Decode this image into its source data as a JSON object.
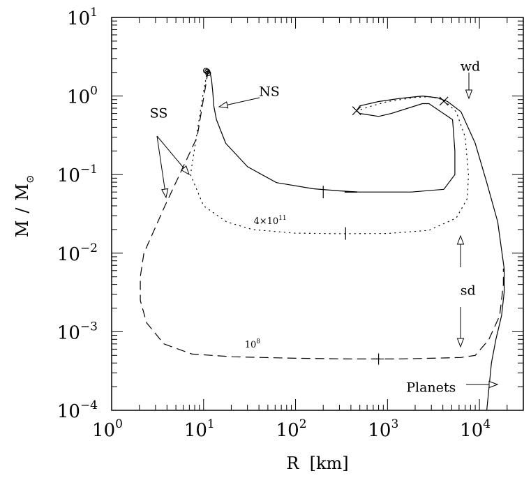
{
  "chart_data": {
    "type": "line",
    "x_scale": "log",
    "y_scale": "log",
    "xlim": [
      1,
      30000
    ],
    "ylim": [
      0.0001,
      10
    ],
    "xlabel": "R  [km]",
    "ylabel_main": "M",
    "ylabel_slash": "/",
    "ylabel_symbol": "M",
    "ylabel_sub": "⊙",
    "x_ticks": [
      {
        "base": "10",
        "exp": "0",
        "value": 1
      },
      {
        "base": "10",
        "exp": "1",
        "value": 10
      },
      {
        "base": "10",
        "exp": "2",
        "value": 100
      },
      {
        "base": "10",
        "exp": "3",
        "value": 1000
      },
      {
        "base": "10",
        "exp": "4",
        "value": 10000
      }
    ],
    "y_ticks": [
      {
        "base": "10",
        "exp": "−4",
        "value": 0.0001
      },
      {
        "base": "10",
        "exp": "−3",
        "value": 0.001
      },
      {
        "base": "10",
        "exp": "−2",
        "value": 0.01
      },
      {
        "base": "10",
        "exp": "−1",
        "value": 0.1
      },
      {
        "base": "10",
        "exp": "0",
        "value": 1
      },
      {
        "base": "10",
        "exp": "1",
        "value": 10
      }
    ],
    "grid": false,
    "series": [
      {
        "style": "solid",
        "x": [
          11.2,
          11.4,
          11.8,
          12.2,
          12.6,
          12.9,
          13.8,
          17.4,
          30,
          62,
          156,
          309,
          490,
          1000,
          1820,
          4100,
          5400,
          5400,
          5100,
          2820,
          2400,
          1100,
          800,
          500,
          462,
          500,
          800,
          1350,
          2400,
          3500,
          4500,
          6300,
          9000,
          12000,
          15800,
          18600,
          18600,
          17400,
          15100,
          13500,
          12000
        ],
        "y": [
          2.1,
          2.0,
          1.95,
          1.6,
          1.1,
          0.75,
          0.5,
          0.25,
          0.126,
          0.079,
          0.066,
          0.062,
          0.06,
          0.06,
          0.06,
          0.065,
          0.1,
          0.2,
          0.5,
          0.8,
          0.8,
          0.6,
          0.55,
          0.6,
          0.65,
          0.75,
          0.85,
          0.93,
          1.0,
          0.95,
          0.85,
          0.63,
          0.25,
          0.079,
          0.025,
          0.0063,
          0.0032,
          0.0016,
          0.0008,
          0.0004,
          0.0001
        ]
      },
      {
        "style": "dotted",
        "x": [
          11,
          9.8,
          7.2,
          10,
          17.8,
          34,
          98,
          302,
          1000,
          2820,
          5600,
          7400,
          7600,
          7000,
          5600,
          4100,
          3000,
          2000,
          1000,
          630,
          470
        ],
        "y": [
          2.1,
          1.0,
          0.1,
          0.04,
          0.025,
          0.02,
          0.018,
          0.0177,
          0.0178,
          0.0195,
          0.028,
          0.05,
          0.1,
          0.3,
          0.63,
          0.89,
          0.98,
          0.96,
          0.85,
          0.73,
          0.65
        ]
      },
      {
        "style": "dashed",
        "x": [
          11.2,
          8.5,
          3.8,
          2.24,
          2.05,
          2.05,
          2.4,
          3.7,
          7.5,
          21,
          100,
          400,
          1260,
          3000,
          6300,
          9000,
          12600,
          16600,
          18200,
          18200
        ],
        "y": [
          2.1,
          0.3,
          0.04,
          0.01,
          0.005,
          0.0025,
          0.0013,
          0.0007,
          0.00052,
          0.00048,
          0.00046,
          0.00045,
          0.00045,
          0.00046,
          0.00047,
          0.0005,
          0.00079,
          0.0016,
          0.004,
          0.0063
        ]
      }
    ],
    "markers": [
      {
        "shape": "circle",
        "x": 10.6,
        "y": 2.1
      },
      {
        "shape": "circle",
        "x": 11.0,
        "y": 2.05
      },
      {
        "shape": "circle",
        "x": 11.2,
        "y": 1.95
      },
      {
        "shape": "cross",
        "x": 462,
        "y": 0.65
      },
      {
        "shape": "cross",
        "x": 4100,
        "y": 0.86
      },
      {
        "shape": "vtick",
        "x": 200,
        "y": 0.06
      },
      {
        "shape": "dash",
        "x": 400,
        "y": 0.06
      },
      {
        "shape": "vtick",
        "x": 350,
        "y": 0.0178
      },
      {
        "shape": "plus",
        "x": 800,
        "y": 0.00045
      }
    ],
    "annotations": [
      {
        "id": "ns",
        "text": "NS",
        "x": 40,
        "y": 1.0
      },
      {
        "id": "ss",
        "text": "SS",
        "x": 2.6,
        "y": 0.53
      },
      {
        "id": "wd",
        "text": "wd",
        "x": 6200,
        "y": 2.1
      },
      {
        "id": "sd",
        "text": "sd",
        "x": 6200,
        "y": 0.00295
      },
      {
        "id": "planets",
        "text": "Planets",
        "x": 1600,
        "y": 0.000172
      },
      {
        "id": "d1",
        "text": "4×10",
        "exp": "11",
        "x": 35,
        "y": 0.0235
      },
      {
        "id": "d2",
        "text": "10",
        "exp": "8",
        "x": 28,
        "y": 0.00063
      }
    ]
  }
}
